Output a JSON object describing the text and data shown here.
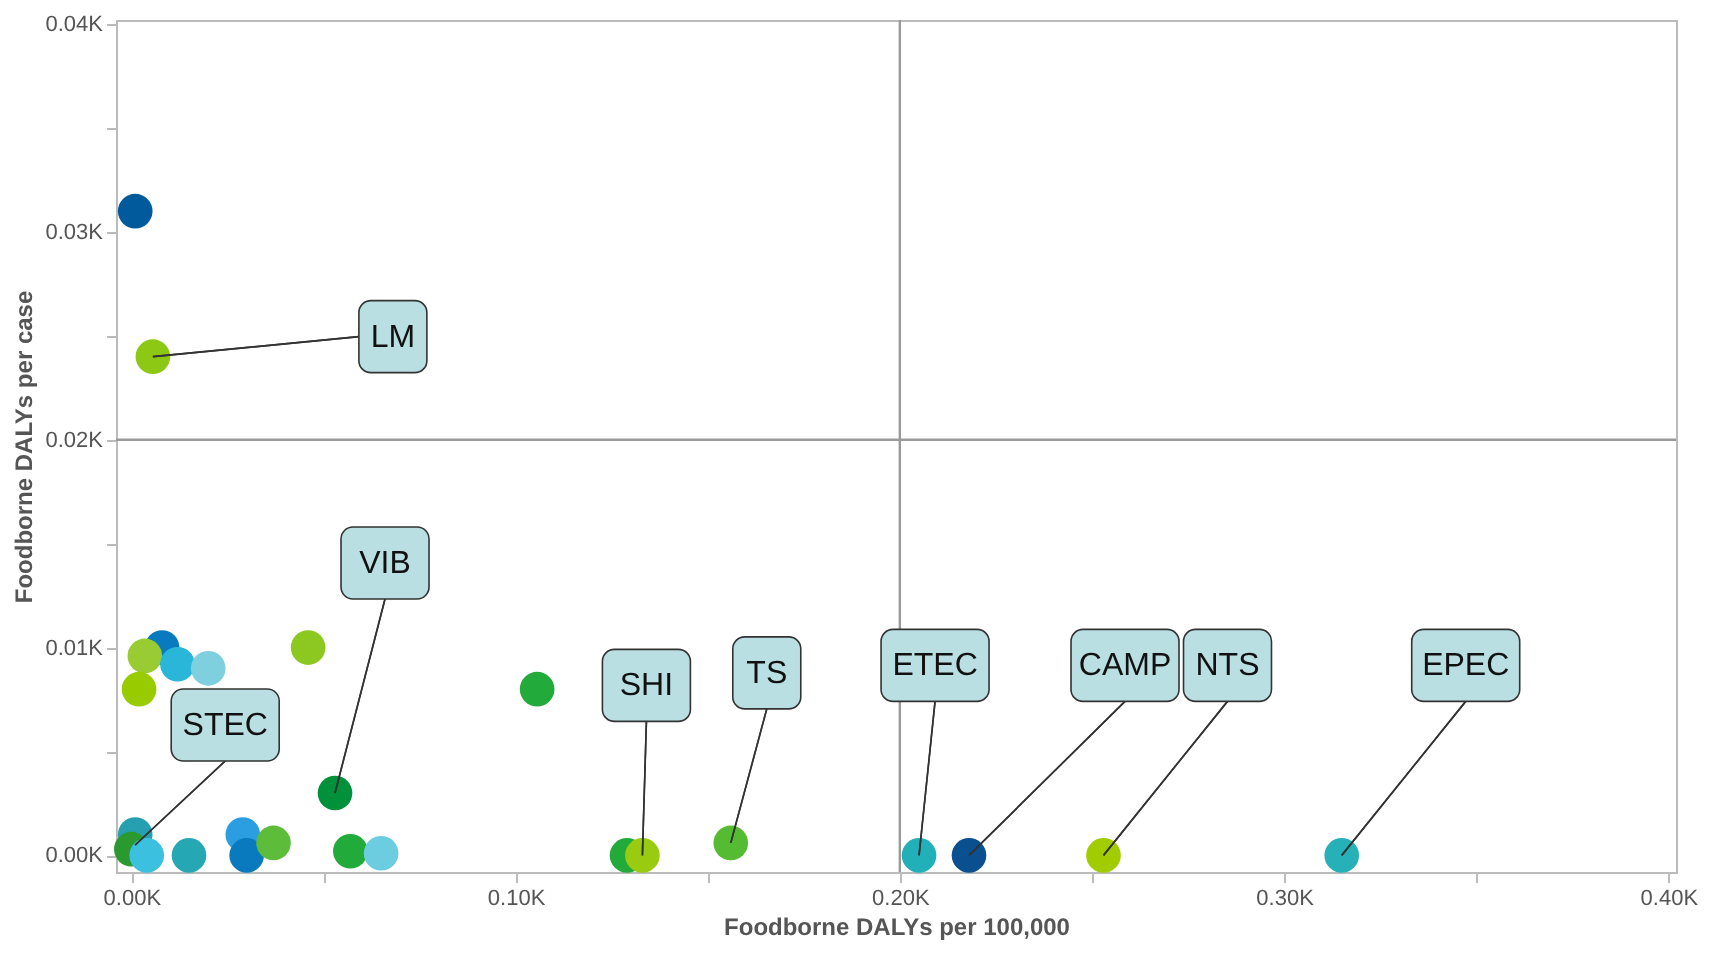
{
  "chart_data": {
    "type": "scatter",
    "xlabel": "Foodborne DALYs per 100,000",
    "ylabel": "Foodborne DALYs per case",
    "x": [
      1,
      5.6,
      8,
      3.5,
      2,
      12,
      20,
      46,
      105.6,
      53,
      1,
      0,
      4,
      15,
      29,
      30,
      37,
      57,
      65,
      129,
      133,
      156,
      205,
      218,
      253,
      315
    ],
    "values": [
      31,
      24,
      10,
      9.6,
      8,
      9.2,
      9,
      10,
      8,
      3,
      1,
      0.3,
      0,
      0,
      1,
      0,
      0.6,
      0.2,
      0.1,
      0,
      0,
      0.6,
      0,
      0,
      0,
      0
    ],
    "colors": [
      "#005a9c",
      "#8cc814",
      "#0a7abf",
      "#99cc33",
      "#99cc00",
      "#29b6d9",
      "#7fd0df",
      "#8cc820",
      "#22aa3a",
      "#00913a",
      "#26a0b0",
      "#2a9a30",
      "#3cc0e0",
      "#26a8b4",
      "#2a9ee0",
      "#0a7abf",
      "#5dbd3a",
      "#22aa3a",
      "#6dcde0",
      "#22aa3a",
      "#99cc11",
      "#55bb33",
      "#22b0b8",
      "#0a4f8f",
      "#a0cc00",
      "#26b0b8"
    ],
    "marker": "circle",
    "grid": false,
    "xlim": [
      -4,
      402
    ],
    "ylim": [
      -0.8,
      40.2
    ],
    "xticks": [
      {
        "value": 0,
        "label": "0.00K"
      },
      {
        "value": 50,
        "label": null
      },
      {
        "value": 100,
        "label": "0.10K"
      },
      {
        "value": 150,
        "label": null
      },
      {
        "value": 200,
        "label": "0.20K"
      },
      {
        "value": 250,
        "label": null
      },
      {
        "value": 300,
        "label": "0.30K"
      },
      {
        "value": 350,
        "label": null
      },
      {
        "value": 400,
        "label": "0.40K"
      }
    ],
    "yticks": [
      {
        "value": 0,
        "label": "0.00K"
      },
      {
        "value": 5,
        "label": null
      },
      {
        "value": 10,
        "label": "0.01K"
      },
      {
        "value": 15,
        "label": null
      },
      {
        "value": 20,
        "label": "0.02K"
      },
      {
        "value": 25,
        "label": null
      },
      {
        "value": 30,
        "label": "0.03K"
      },
      {
        "value": 35,
        "label": null
      },
      {
        "value": 40,
        "label": "0.04K"
      }
    ],
    "ref_lines": [
      {
        "axis": "x",
        "value": 200,
        "color": "#999999"
      },
      {
        "axis": "y",
        "value": 20,
        "color": "#999999"
      }
    ],
    "annotations": [
      {
        "text": "LM",
        "x": 5.6,
        "y": 24
      },
      {
        "text": "VIB",
        "x": 53,
        "y": 3
      },
      {
        "text": "STEC",
        "x": 1,
        "y": 0.5
      },
      {
        "text": "SHI",
        "x": 133,
        "y": 0
      },
      {
        "text": "TS",
        "x": 156,
        "y": 0.6
      },
      {
        "text": "ETEC",
        "x": 205,
        "y": 0
      },
      {
        "text": "CAMP",
        "x": 218,
        "y": 0
      },
      {
        "text": "NTS",
        "x": 253,
        "y": 0
      },
      {
        "text": "EPEC",
        "x": 315,
        "y": 0
      }
    ]
  }
}
